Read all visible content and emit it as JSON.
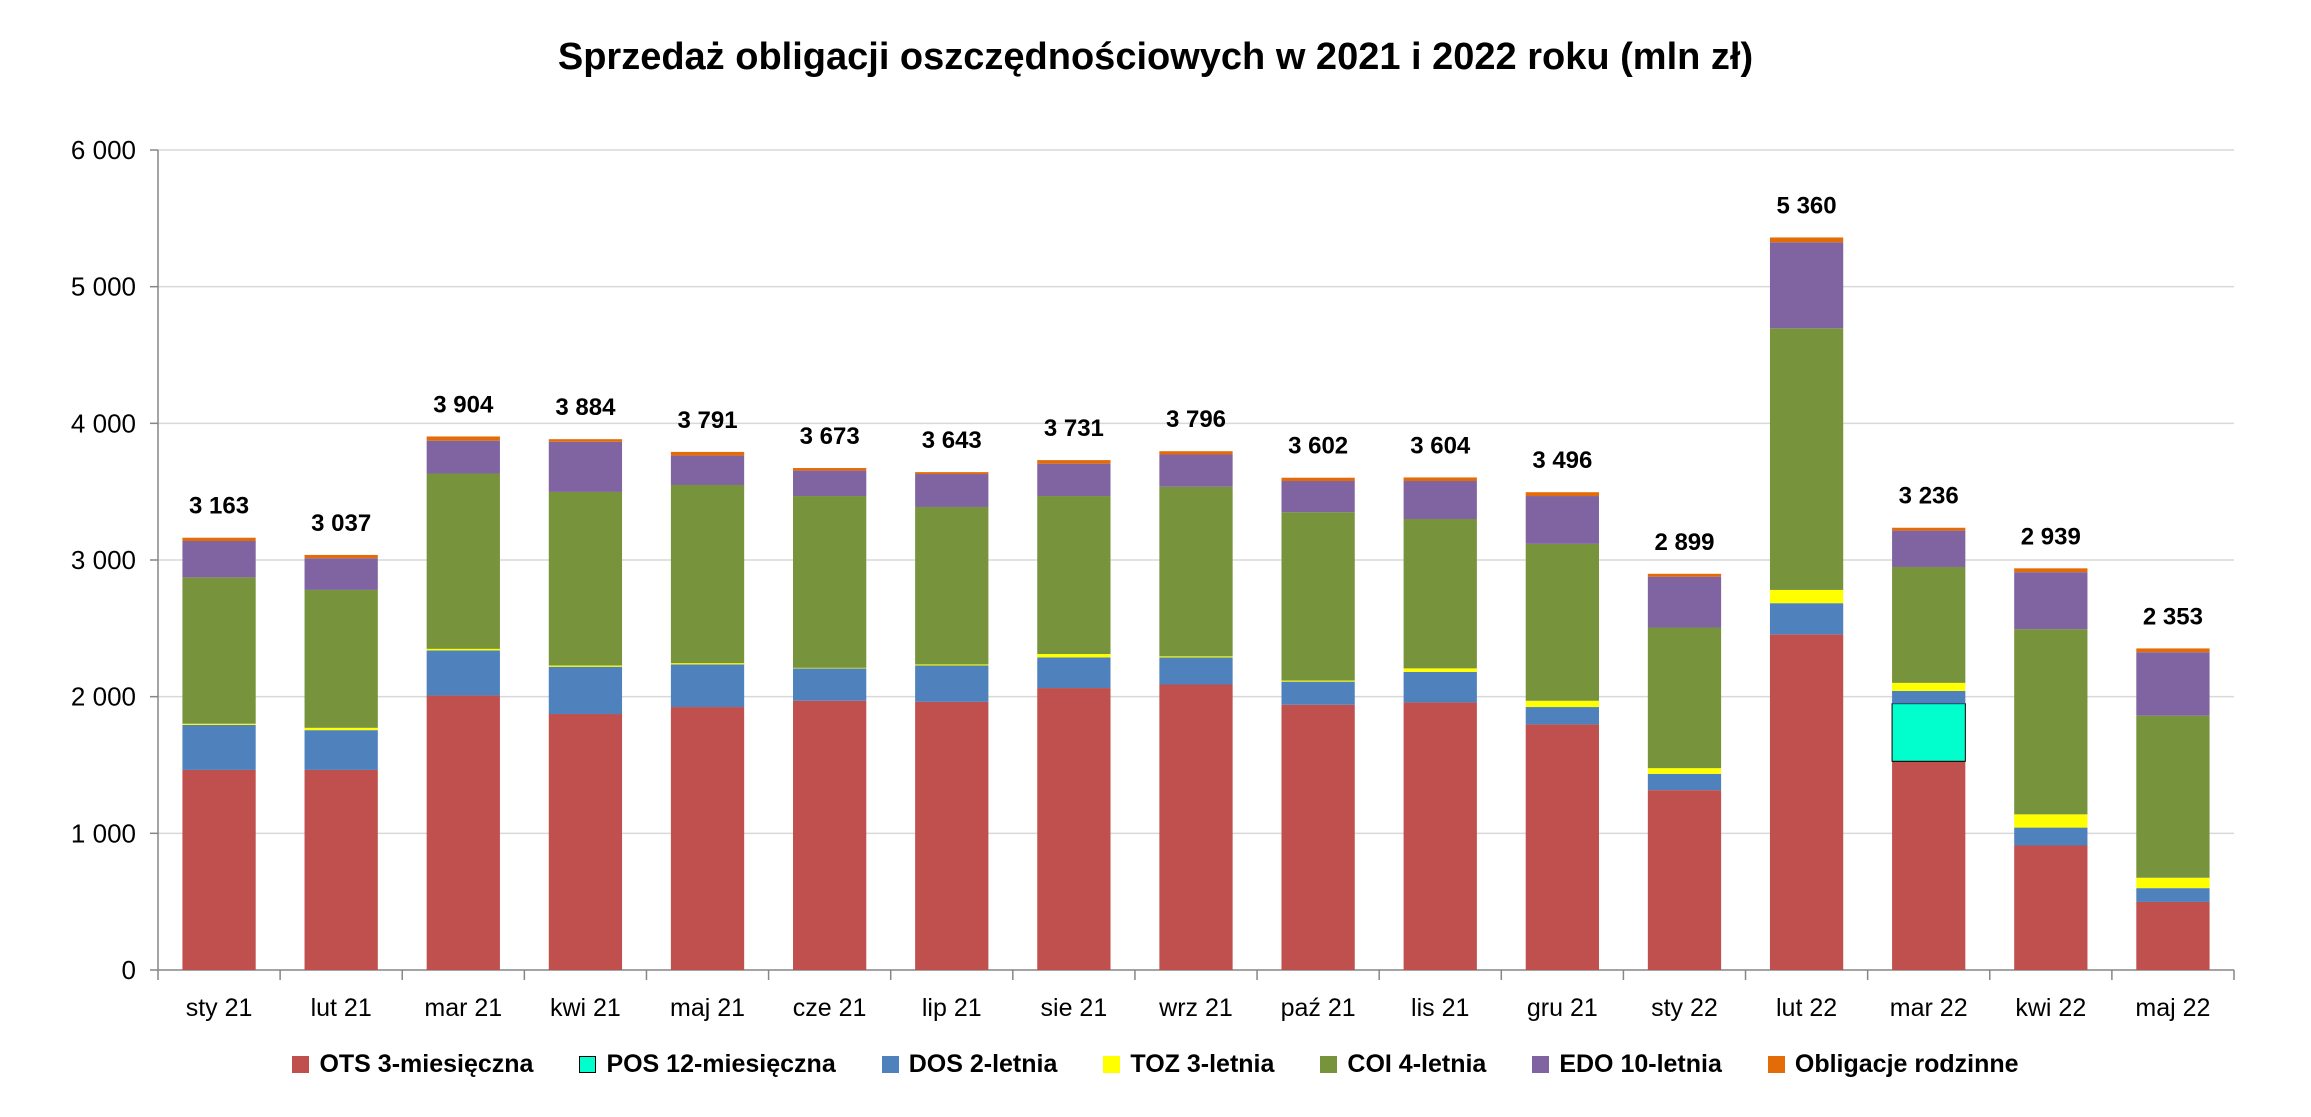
{
  "chart_data": {
    "type": "bar",
    "stacked": true,
    "title": "Sprzedaż obligacji oszczędnościowych w 2021 i 2022 roku (mln zł)",
    "xlabel": "",
    "ylabel": "",
    "ylim": [
      0,
      6000
    ],
    "yticks": [
      "0",
      "1 000",
      "2 000",
      "3 000",
      "4 000",
      "5 000",
      "6 000"
    ],
    "grid": true,
    "legend_position": "bottom",
    "categories": [
      "sty 21",
      "lut 21",
      "mar 21",
      "kwi 21",
      "maj 21",
      "cze 21",
      "lip 21",
      "sie 21",
      "wrz 21",
      "paź 21",
      "lis 21",
      "gru 21",
      "sty 22",
      "lut 22",
      "mar 22",
      "kwi 22",
      "maj 22"
    ],
    "totals": [
      "3 163",
      "3 037",
      "3 904",
      "3 884",
      "3 791",
      "3 673",
      "3 643",
      "3 731",
      "3 796",
      "3 602",
      "3 604",
      "3 496",
      "2 899",
      "5 360",
      "3 236",
      "2 939",
      "2 353"
    ],
    "series": [
      {
        "name": "OTS 3-miesięczna",
        "color": "#C0504D",
        "values": [
          1464,
          1464,
          2008,
          1873,
          1924,
          1970,
          1962,
          2063,
          2089,
          1941,
          1958,
          1797,
          1316,
          2456,
          1527,
          911,
          498
        ]
      },
      {
        "name": "POS 12-miesięczna",
        "color": "#00FFCC",
        "values": [
          0,
          0,
          0,
          0,
          0,
          0,
          0,
          0,
          0,
          0,
          0,
          0,
          0,
          0,
          422,
          0,
          0
        ]
      },
      {
        "name": "DOS 2-letnia",
        "color": "#4F81BD",
        "values": [
          330,
          291,
          330,
          346,
          312,
          237,
          266,
          224,
          198,
          169,
          223,
          127,
          119,
          228,
          93,
          131,
          101
        ]
      },
      {
        "name": "TOZ 3-letnia",
        "color": "#FFFF00",
        "values": [
          8,
          17,
          12,
          9,
          9,
          4,
          8,
          25,
          8,
          8,
          26,
          46,
          42,
          97,
          59,
          97,
          76
        ]
      },
      {
        "name": "COI 4-letnia",
        "color": "#77933C",
        "values": [
          1071,
          1009,
          1283,
          1270,
          1304,
          1257,
          1152,
          1156,
          1241,
          1232,
          1093,
          1148,
          1029,
          1915,
          848,
          1355,
          1186
        ]
      },
      {
        "name": "EDO 10-letnia",
        "color": "#8064A2",
        "values": [
          266,
          232,
          240,
          367,
          215,
          186,
          241,
          237,
          236,
          228,
          278,
          350,
          372,
          629,
          266,
          417,
          464
        ]
      },
      {
        "name": "Obligacje rodzinne",
        "color": "#E36C09",
        "values": [
          24,
          24,
          31,
          19,
          27,
          19,
          14,
          26,
          24,
          24,
          26,
          28,
          21,
          35,
          21,
          28,
          28
        ]
      }
    ]
  }
}
